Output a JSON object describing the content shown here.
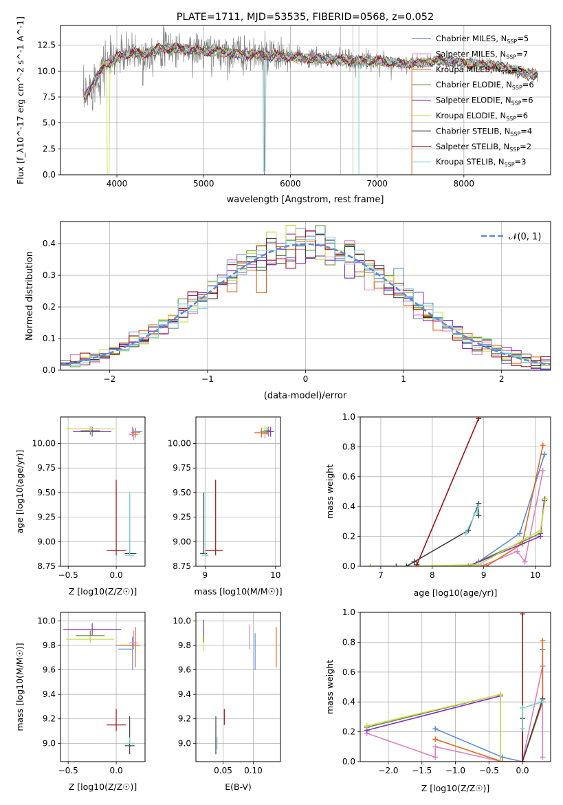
{
  "colors": {
    "chab_miles": "#5b8bdc",
    "salp_miles": "#e07fbe",
    "krou_miles": "#e06b1c",
    "chab_elodie": "#5e8c3a",
    "salp_elodie": "#8a2bc2",
    "krou_elodie": "#c8e04a",
    "chab_stelib": "#404040",
    "salp_stelib": "#a01010",
    "krou_stelib": "#7fd6dc",
    "observed": "#808080",
    "normal": "#5b8bdc"
  },
  "chart_data": [
    {
      "id": "spectrum",
      "type": "line",
      "title": "PLATE=1711, MJD=53535, FIBERID=0568, z=0.052",
      "xlabel": "wavelength [Angstrom, rest frame]",
      "ylabel": "Flux [f_λ10^-17 erg cm^-2 s^-1 A^-1]",
      "xlim": [
        3350,
        9000
      ],
      "ylim": [
        0,
        14.4
      ],
      "xticks": [
        "4000",
        "5000",
        "6000",
        "7000",
        "8000"
      ],
      "yticks": [
        "0.0",
        "2.5",
        "5.0",
        "7.5",
        "10.0",
        "12.5"
      ],
      "grid": true,
      "legend_position": "top-right",
      "legend": [
        {
          "key": "chab_miles",
          "label": "Chabrier MILES, N",
          "n": "5"
        },
        {
          "key": "salp_miles",
          "label": "Salpeter MILES, N",
          "n": "7"
        },
        {
          "key": "krou_miles",
          "label": "Kroupa MILES, N",
          "n": "5"
        },
        {
          "key": "chab_elodie",
          "label": "Chabrier ELODIE, N",
          "n": "6"
        },
        {
          "key": "salp_elodie",
          "label": "Salpeter ELODIE, N",
          "n": "6"
        },
        {
          "key": "krou_elodie",
          "label": "Kroupa ELODIE, N",
          "n": "6"
        },
        {
          "key": "chab_stelib",
          "label": "Chabrier STELIB, N",
          "n": "4"
        },
        {
          "key": "salp_stelib",
          "label": "Salpeter STELIB, N",
          "n": "2"
        },
        {
          "key": "krou_stelib",
          "label": "Kroupa STELIB, N",
          "n": "3"
        }
      ],
      "legend_subscript": "SSP",
      "continuum_x": [
        3600,
        3650,
        3700,
        3750,
        3800,
        3850,
        3900,
        3950,
        4000,
        4100,
        4200,
        4300,
        4400,
        4500,
        4700,
        4900,
        5100,
        5300,
        5500,
        5700,
        5900,
        6100,
        6300,
        6500,
        6700,
        6900,
        7100,
        7300,
        7500,
        7700,
        7900,
        8100,
        8300,
        8500,
        8700,
        8900
      ],
      "continuum_y": [
        6.8,
        7.8,
        8.5,
        9.2,
        9.8,
        10.6,
        10.8,
        11.0,
        11.4,
        11.6,
        11.8,
        11.6,
        11.8,
        12.2,
        12.2,
        12.0,
        11.9,
        11.8,
        11.6,
        11.5,
        11.4,
        11.3,
        11.2,
        11.1,
        11.0,
        11.0,
        10.9,
        10.7,
        10.8,
        11.0,
        10.9,
        10.7,
        10.6,
        10.3,
        9.8,
        9.5
      ],
      "vlines_x": [
        6580,
        6720,
        6790
      ]
    },
    {
      "id": "residuals",
      "type": "line",
      "xlabel": "(data-model)/error",
      "ylabel": "Normed distribution",
      "xlim": [
        -2.5,
        2.5
      ],
      "ylim": [
        0,
        0.47
      ],
      "xticks": [
        "−2",
        "−1",
        "0",
        "1",
        "2"
      ],
      "yticks": [
        "0.0",
        "0.1",
        "0.2",
        "0.3",
        "0.4"
      ],
      "grid": true,
      "legend_position": "top-right",
      "legend_label": "𝒩(0, 1)",
      "histogram_bin_width": 0.1
    },
    {
      "id": "age_vs_Z",
      "type": "scatter",
      "xlabel": "Z [log10(Z/Z☉)]",
      "ylabel": "age [log10(age/yr)]",
      "xlim": [
        -0.58,
        0.3
      ],
      "ylim": [
        8.75,
        10.27
      ],
      "xticks": [
        "−0.5",
        "0.0"
      ],
      "yticks": [
        "8.75",
        "9.00",
        "9.25",
        "9.50",
        "9.75",
        "10.00"
      ],
      "grid": true,
      "points": [
        {
          "key": "chab_miles",
          "x": 0.17,
          "y": 10.12,
          "xerr": [
            0.0,
            0.1
          ],
          "yerr": [
            0.05,
            0.05
          ]
        },
        {
          "key": "salp_miles",
          "x": 0.18,
          "y": 10.09,
          "xerr": [
            0.05,
            0.05
          ],
          "yerr": [
            0.06,
            0.06
          ]
        },
        {
          "key": "krou_miles",
          "x": 0.2,
          "y": 10.11,
          "xerr": [
            0.05,
            0.05
          ],
          "yerr": [
            0.05,
            0.05
          ]
        },
        {
          "key": "chab_elodie",
          "x": -0.27,
          "y": 10.13,
          "xerr": [
            0.1,
            0.1
          ],
          "yerr": [
            0.04,
            0.04
          ]
        },
        {
          "key": "salp_elodie",
          "x": -0.25,
          "y": 10.12,
          "xerr": [
            0.2,
            0.2
          ],
          "yerr": [
            0.05,
            0.05
          ]
        },
        {
          "key": "krou_elodie",
          "x": -0.27,
          "y": 10.15,
          "xerr": [
            0.25,
            0.25
          ],
          "yerr": [
            0.03,
            0.03
          ]
        },
        {
          "key": "chab_stelib",
          "x": 0.14,
          "y": 8.88,
          "xerr": [
            0.05,
            0.07
          ],
          "yerr": [
            0.0,
            0.6
          ]
        },
        {
          "key": "salp_stelib",
          "x": 0.0,
          "y": 8.91,
          "xerr": [
            0.1,
            0.1
          ],
          "yerr": [
            0.05,
            0.72
          ]
        },
        {
          "key": "krou_stelib",
          "x": 0.14,
          "y": 8.86,
          "xerr": [
            0.05,
            0.05
          ],
          "yerr": [
            0.0,
            0.65
          ]
        }
      ]
    },
    {
      "id": "age_vs_mass",
      "type": "scatter",
      "xlabel": "mass [log10(M/M☉)]",
      "ylabel": "",
      "xlim": [
        8.87,
        10.07
      ],
      "ylim": [
        8.75,
        10.27
      ],
      "xticks": [
        "9",
        "10"
      ],
      "yticks": [
        "8.75",
        "9.00",
        "9.25",
        "9.50",
        "9.75",
        "10.00"
      ],
      "grid": true,
      "points": [
        {
          "key": "chab_miles",
          "x": 9.9,
          "y": 10.12,
          "xerr": [
            0.12,
            0.0
          ],
          "yerr": [
            0.05,
            0.05
          ]
        },
        {
          "key": "salp_miles",
          "x": 9.85,
          "y": 10.1,
          "xerr": [
            0.05,
            0.05
          ],
          "yerr": [
            0.05,
            0.05
          ]
        },
        {
          "key": "krou_miles",
          "x": 9.8,
          "y": 10.11,
          "xerr": [
            0.1,
            0.1
          ],
          "yerr": [
            0.05,
            0.05
          ]
        },
        {
          "key": "chab_elodie",
          "x": 9.88,
          "y": 10.13,
          "xerr": [
            0.05,
            0.05
          ],
          "yerr": [
            0.04,
            0.04
          ]
        },
        {
          "key": "salp_elodie",
          "x": 9.93,
          "y": 10.12,
          "xerr": [
            0.05,
            0.05
          ],
          "yerr": [
            0.05,
            0.05
          ]
        },
        {
          "key": "krou_elodie",
          "x": 9.85,
          "y": 10.15,
          "xerr": [
            0.05,
            0.05
          ],
          "yerr": [
            0.03,
            0.03
          ]
        },
        {
          "key": "chab_stelib",
          "x": 8.98,
          "y": 8.88,
          "xerr": [
            0.05,
            0.05
          ],
          "yerr": [
            0.0,
            0.62
          ]
        },
        {
          "key": "salp_stelib",
          "x": 9.15,
          "y": 8.91,
          "xerr": [
            0.15,
            0.1
          ],
          "yerr": [
            0.05,
            0.72
          ]
        },
        {
          "key": "krou_stelib",
          "x": 9.0,
          "y": 8.86,
          "xerr": [
            0.05,
            0.05
          ],
          "yerr": [
            0.0,
            0.65
          ]
        }
      ]
    },
    {
      "id": "weight_vs_age",
      "type": "line",
      "xlabel": "age [log10(age/yr)]",
      "ylabel": "mass weight",
      "xlim": [
        6.6,
        10.3
      ],
      "ylim": [
        0,
        1.0
      ],
      "xticks": [
        "7",
        "8",
        "9",
        "10"
      ],
      "yticks": [
        "0.0",
        "0.2",
        "0.4",
        "0.6",
        "0.8",
        "1.0"
      ],
      "grid": true,
      "series": [
        {
          "key": "chab_miles",
          "x": [
            8.7,
            8.9,
            9.7,
            10.18
          ],
          "y": [
            0.0,
            0.03,
            0.22,
            0.75
          ]
        },
        {
          "key": "salp_miles",
          "x": [
            8.7,
            8.95,
            9.65,
            9.8,
            10.15
          ],
          "y": [
            0.0,
            0.0,
            0.1,
            0.03,
            0.64
          ]
        },
        {
          "key": "krou_miles",
          "x": [
            8.75,
            9.05,
            9.75,
            10.15
          ],
          "y": [
            0.0,
            0.0,
            0.15,
            0.81
          ]
        },
        {
          "key": "chab_elodie",
          "x": [
            6.8,
            7.3,
            8.7,
            10.1,
            10.18
          ],
          "y": [
            0.0,
            0.0,
            0.0,
            0.22,
            0.44
          ]
        },
        {
          "key": "salp_elodie",
          "x": [
            6.8,
            7.3,
            8.7,
            10.1,
            10.18
          ],
          "y": [
            0.0,
            0.0,
            0.0,
            0.2,
            0.45
          ]
        },
        {
          "key": "krou_elodie",
          "x": [
            6.8,
            7.5,
            8.9,
            10.1,
            10.2
          ],
          "y": [
            0.0,
            0.0,
            0.01,
            0.24,
            0.45
          ]
        },
        {
          "key": "chab_stelib",
          "x": [
            7.5,
            7.65,
            8.7,
            8.9,
            8.9
          ],
          "y": [
            0.0,
            0.03,
            0.24,
            0.42,
            0.34
          ]
        },
        {
          "key": "salp_stelib",
          "x": [
            7.7,
            8.9
          ],
          "y": [
            0.01,
            0.99
          ]
        },
        {
          "key": "krou_stelib",
          "x": [
            8.65,
            8.9,
            8.88
          ],
          "y": [
            0.22,
            0.4,
            0.36
          ]
        }
      ]
    },
    {
      "id": "mass_vs_Z",
      "type": "scatter",
      "xlabel": "Z [log10(Z/Z☉)]",
      "ylabel": "mass [log10(M/M☉)]",
      "xlim": [
        -0.58,
        0.3
      ],
      "ylim": [
        8.85,
        10.07
      ],
      "xticks": [
        "−0.5",
        "0.0"
      ],
      "yticks": [
        "9.0",
        "9.2",
        "9.4",
        "9.6",
        "9.8",
        "10.0"
      ],
      "grid": true,
      "points": [
        {
          "key": "chab_miles",
          "x": 0.17,
          "y": 9.77,
          "xerr": [
            0.15,
            0.0
          ],
          "yerr": [
            0.17,
            0.1
          ]
        },
        {
          "key": "salp_miles",
          "x": 0.18,
          "y": 9.82,
          "xerr": [
            0.05,
            0.05
          ],
          "yerr": [
            0.05,
            0.1
          ]
        },
        {
          "key": "krou_miles",
          "x": 0.2,
          "y": 9.8,
          "xerr": [
            0.2,
            0.05
          ],
          "yerr": [
            0.18,
            0.15
          ]
        },
        {
          "key": "chab_elodie",
          "x": -0.27,
          "y": 9.88,
          "xerr": [
            0.15,
            0.15
          ],
          "yerr": [
            0.05,
            0.04
          ]
        },
        {
          "key": "salp_elodie",
          "x": -0.25,
          "y": 9.93,
          "xerr": [
            0.3,
            0.3
          ],
          "yerr": [
            0.05,
            0.05
          ]
        },
        {
          "key": "krou_elodie",
          "x": -0.27,
          "y": 9.85,
          "xerr": [
            0.25,
            0.25
          ],
          "yerr": [
            0.03,
            0.03
          ]
        },
        {
          "key": "chab_stelib",
          "x": 0.14,
          "y": 8.98,
          "xerr": [
            0.05,
            0.05
          ],
          "yerr": [
            0.07,
            0.24
          ]
        },
        {
          "key": "salp_stelib",
          "x": 0.0,
          "y": 9.15,
          "xerr": [
            0.1,
            0.1
          ],
          "yerr": [
            0.05,
            0.13
          ]
        },
        {
          "key": "krou_stelib",
          "x": 0.14,
          "y": 9.0,
          "xerr": [
            0.05,
            0.05
          ],
          "yerr": [
            0.0,
            0.05
          ]
        }
      ]
    },
    {
      "id": "mass_vs_EBV",
      "type": "scatter",
      "xlabel": "E(B-V)",
      "ylabel": "",
      "xlim": [
        0.005,
        0.145
      ],
      "ylim": [
        8.85,
        10.07
      ],
      "xticks": [
        "0.05",
        "0.10"
      ],
      "yticks": [
        "9.0",
        "9.2",
        "9.4",
        "9.6",
        "9.8",
        "10.0"
      ],
      "grid": true,
      "points": [
        {
          "key": "chab_miles",
          "x": 0.103,
          "y": 9.77,
          "yerr": [
            0.17,
            0.13
          ]
        },
        {
          "key": "salp_miles",
          "x": 0.094,
          "y": 9.82,
          "yerr": [
            0.05,
            0.15
          ]
        },
        {
          "key": "krou_miles",
          "x": 0.138,
          "y": 9.8,
          "yerr": [
            0.18,
            0.15
          ]
        },
        {
          "key": "chab_elodie",
          "x": 0.018,
          "y": 9.88,
          "yerr": [
            0.05,
            0.04
          ]
        },
        {
          "key": "salp_elodie",
          "x": 0.018,
          "y": 9.93,
          "yerr": [
            0.05,
            0.08
          ]
        },
        {
          "key": "krou_elodie",
          "x": 0.017,
          "y": 9.85,
          "yerr": [
            0.1,
            0.05
          ]
        },
        {
          "key": "chab_stelib",
          "x": 0.038,
          "y": 8.98,
          "yerr": [
            0.07,
            0.24
          ]
        },
        {
          "key": "salp_stelib",
          "x": 0.052,
          "y": 9.15,
          "yerr": [
            0.0,
            0.13
          ]
        },
        {
          "key": "krou_stelib",
          "x": 0.04,
          "y": 9.0,
          "yerr": [
            0.05,
            0.05
          ]
        }
      ]
    },
    {
      "id": "weight_vs_Z",
      "type": "line",
      "xlabel": "Z [log10(Z/Z☉)]",
      "ylabel": "mass weight",
      "xlim": [
        -2.42,
        0.42
      ],
      "ylim": [
        0,
        1.0
      ],
      "xticks": [
        "−2.0",
        "−1.5",
        "−1.0",
        "−0.5",
        "0.0"
      ],
      "yticks": [
        "0.0",
        "0.2",
        "0.4",
        "0.6",
        "0.8",
        "1.0"
      ],
      "grid": true,
      "series": [
        {
          "key": "chab_miles",
          "x": [
            -1.3,
            -0.3,
            0.0,
            0.3,
            0.3
          ],
          "y": [
            0.22,
            0.03,
            0.0,
            0.4,
            0.75
          ]
        },
        {
          "key": "salp_miles",
          "x": [
            -2.32,
            -1.3,
            -1.3,
            -0.3,
            0.0,
            0.3,
            0.3
          ],
          "y": [
            0.19,
            0.03,
            0.1,
            0.0,
            0.0,
            0.64,
            0.03
          ]
        },
        {
          "key": "krou_miles",
          "x": [
            -1.3,
            -0.3,
            0.0,
            0.3,
            0.3
          ],
          "y": [
            0.15,
            0.0,
            0.0,
            0.4,
            0.81
          ]
        },
        {
          "key": "chab_elodie",
          "x": [
            -2.32,
            -0.33,
            -0.33
          ],
          "y": [
            0.23,
            0.45,
            0.0
          ]
        },
        {
          "key": "salp_elodie",
          "x": [
            -2.32,
            -0.33,
            -0.33
          ],
          "y": [
            0.21,
            0.44,
            0.0
          ]
        },
        {
          "key": "krou_elodie",
          "x": [
            -2.32,
            -0.33,
            -0.33
          ],
          "y": [
            0.24,
            0.45,
            0.0
          ]
        },
        {
          "key": "chab_stelib",
          "x": [
            0.0,
            0.0,
            0.3,
            0.3
          ],
          "y": [
            0.29,
            0.0,
            0.42,
            0.4
          ]
        },
        {
          "key": "salp_stelib",
          "x": [
            0.0,
            0.0
          ],
          "y": [
            0.0,
            0.99
          ]
        },
        {
          "key": "krou_stelib",
          "x": [
            0.0,
            0.0,
            0.3
          ],
          "y": [
            0.22,
            0.36,
            0.4
          ]
        }
      ]
    }
  ]
}
